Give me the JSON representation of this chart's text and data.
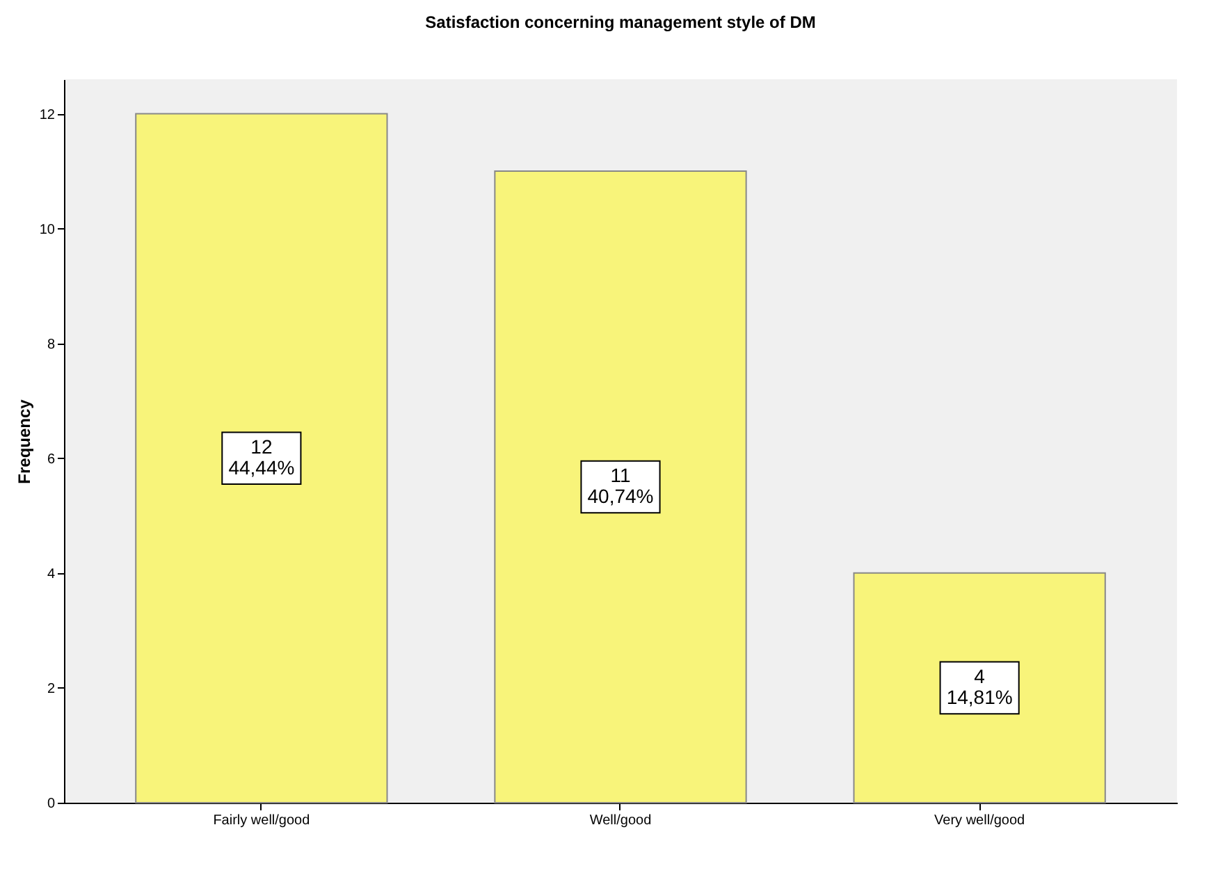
{
  "chart_data": {
    "type": "bar",
    "title": "Satisfaction concerning management style of DM",
    "ylabel": "Frequency",
    "categories": [
      "Fairly well/good",
      "Well/good",
      "Very well/good"
    ],
    "values": [
      12,
      11,
      4
    ],
    "color": "#f8f47a",
    "value_labels": [
      "12\n44,44%",
      "11\n40,74%",
      "4\n14,81%"
    ],
    "ylim": [
      0,
      12.6
    ],
    "yticks": [
      0,
      2,
      4,
      6,
      8,
      10,
      12
    ],
    "grid": false
  }
}
